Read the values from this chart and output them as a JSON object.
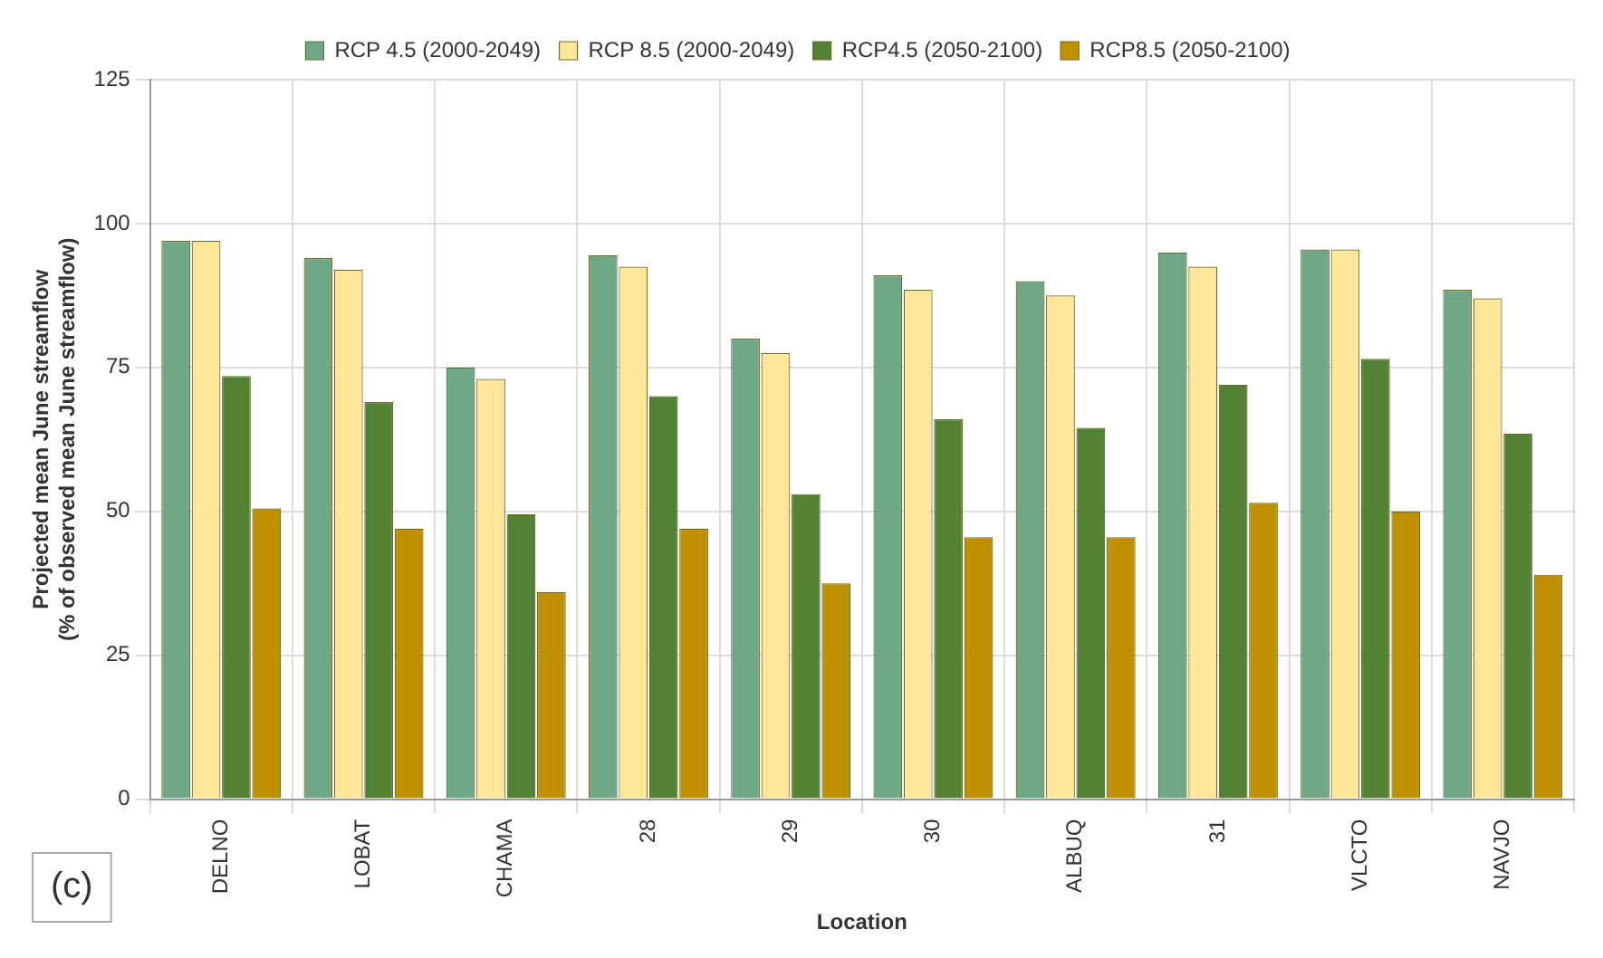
{
  "chart_data": {
    "type": "bar",
    "xlabel": "Location",
    "ylabel": "Projected mean June streamflow\n(% of observed mean June streamflow)",
    "categories": [
      "DELNO",
      "LOBAT",
      "CHAMA",
      "28",
      "29",
      "30",
      "ALBUQ",
      "31",
      "VLCTO",
      "NAVJO"
    ],
    "series": [
      {
        "name": "RCP 4.5 (2000-2049)",
        "color": "#6fa886",
        "values": [
          97,
          94,
          75,
          94.5,
          80,
          91,
          90,
          95,
          95.5,
          88.5
        ]
      },
      {
        "name": "RCP 8.5 (2000-2049)",
        "color": "#ffe699",
        "values": [
          97,
          92,
          73,
          92.5,
          77.5,
          88.5,
          87.5,
          92.5,
          95.5,
          87
        ]
      },
      {
        "name": "RCP4.5 (2050-2100)",
        "color": "#548235",
        "values": [
          73.5,
          69,
          49.5,
          70,
          53,
          66,
          64.5,
          72,
          76.5,
          63.5
        ]
      },
      {
        "name": "RCP8.5 (2050-2100)",
        "color": "#bf9000",
        "values": [
          50.5,
          47,
          36,
          47,
          37.5,
          45.5,
          45.5,
          51.5,
          50,
          39
        ]
      }
    ],
    "ylim": [
      0,
      125
    ],
    "yticks": [
      0,
      25,
      50,
      75,
      100,
      125
    ],
    "grid": true,
    "legend": "top",
    "annotations": [
      "(c)"
    ]
  }
}
